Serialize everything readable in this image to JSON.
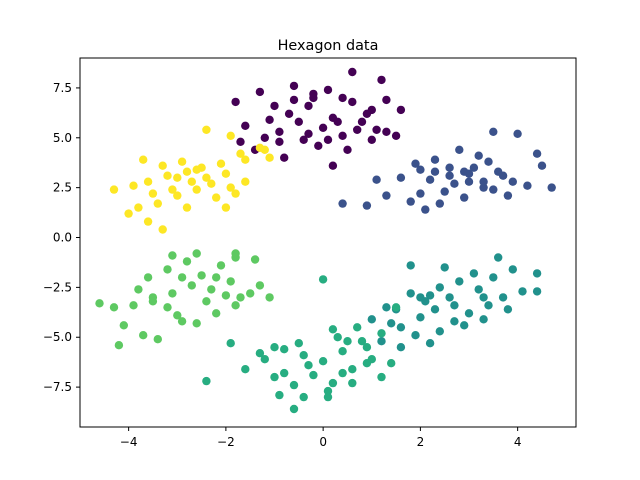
{
  "chart_data": {
    "type": "scatter",
    "title": "Hexagon data",
    "xlabel": "",
    "ylabel": "",
    "xlim": [
      -5.0,
      5.2
    ],
    "ylim": [
      -9.5,
      9.0
    ],
    "xticks": [
      -4,
      -2,
      0,
      2,
      4
    ],
    "xtick_labels": [
      "−4",
      "−2",
      "0",
      "2",
      "4"
    ],
    "yticks": [
      -7.5,
      -5.0,
      -2.5,
      0.0,
      2.5,
      5.0,
      7.5
    ],
    "ytick_labels": [
      "−7.5",
      "−5.0",
      "−2.5",
      "0.0",
      "2.5",
      "5.0",
      "7.5"
    ],
    "grid": false,
    "legend": "none",
    "series": [
      {
        "color": "#440154",
        "points": [
          [
            -1.8,
            6.8
          ],
          [
            -1.3,
            7.3
          ],
          [
            -0.6,
            7.6
          ],
          [
            -0.2,
            7.2
          ],
          [
            0.1,
            7.4
          ],
          [
            0.6,
            8.3
          ],
          [
            1.2,
            7.9
          ],
          [
            1.6,
            6.4
          ],
          [
            -1.6,
            5.6
          ],
          [
            -1.2,
            5.0
          ],
          [
            -0.9,
            5.3
          ],
          [
            -0.4,
            4.9
          ],
          [
            0.0,
            5.5
          ],
          [
            0.4,
            5.1
          ],
          [
            0.8,
            5.8
          ],
          [
            1.1,
            5.4
          ],
          [
            -0.7,
            6.2
          ],
          [
            -0.3,
            6.6
          ],
          [
            0.2,
            6.0
          ],
          [
            0.6,
            6.8
          ],
          [
            1.0,
            6.4
          ],
          [
            -1.0,
            6.6
          ],
          [
            -0.5,
            5.8
          ],
          [
            0.3,
            5.8
          ],
          [
            1.3,
            6.9
          ],
          [
            -0.1,
            4.6
          ],
          [
            0.5,
            4.4
          ],
          [
            -1.4,
            4.4
          ],
          [
            -0.8,
            4.0
          ],
          [
            0.2,
            3.6
          ],
          [
            1.0,
            4.9
          ],
          [
            1.3,
            5.3
          ],
          [
            -0.2,
            7.0
          ],
          [
            0.4,
            7.0
          ],
          [
            0.9,
            6.2
          ],
          [
            -0.6,
            6.9
          ],
          [
            -1.1,
            5.9
          ],
          [
            -0.3,
            5.2
          ],
          [
            0.7,
            5.4
          ],
          [
            0.1,
            4.9
          ],
          [
            1.5,
            5.1
          ],
          [
            -1.7,
            4.8
          ],
          [
            -0.9,
            4.8
          ]
        ]
      },
      {
        "color": "#3b528b",
        "points": [
          [
            1.6,
            3.0
          ],
          [
            1.9,
            3.7
          ],
          [
            2.3,
            3.9
          ],
          [
            2.6,
            3.5
          ],
          [
            3.0,
            3.2
          ],
          [
            3.4,
            3.8
          ],
          [
            3.9,
            2.8
          ],
          [
            4.2,
            2.6
          ],
          [
            4.5,
            3.6
          ],
          [
            2.0,
            2.2
          ],
          [
            2.4,
            1.7
          ],
          [
            2.9,
            2.0
          ],
          [
            3.3,
            2.5
          ],
          [
            3.7,
            3.1
          ],
          [
            2.2,
            2.9
          ],
          [
            2.7,
            2.7
          ],
          [
            3.1,
            3.5
          ],
          [
            3.5,
            2.4
          ],
          [
            1.8,
            1.8
          ],
          [
            2.1,
            1.4
          ],
          [
            2.5,
            2.3
          ],
          [
            3.0,
            2.8
          ],
          [
            3.8,
            2.1
          ],
          [
            4.0,
            5.2
          ],
          [
            4.7,
            2.5
          ],
          [
            3.5,
            5.3
          ],
          [
            1.1,
            2.9
          ],
          [
            0.4,
            1.7
          ],
          [
            0.9,
            1.6
          ],
          [
            1.3,
            2.1
          ],
          [
            2.8,
            4.4
          ],
          [
            3.2,
            4.1
          ],
          [
            4.4,
            4.2
          ],
          [
            2.6,
            3.1
          ],
          [
            2.3,
            3.3
          ],
          [
            3.6,
            3.3
          ],
          [
            2.0,
            3.4
          ],
          [
            2.9,
            3.3
          ],
          [
            3.3,
            2.8
          ]
        ]
      },
      {
        "color": "#21918c",
        "points": [
          [
            1.8,
            -2.8
          ],
          [
            2.1,
            -3.2
          ],
          [
            2.4,
            -2.5
          ],
          [
            2.8,
            -2.2
          ],
          [
            3.2,
            -2.6
          ],
          [
            3.5,
            -2.0
          ],
          [
            3.9,
            -1.6
          ],
          [
            4.4,
            -1.8
          ],
          [
            2.0,
            -4.0
          ],
          [
            2.3,
            -3.6
          ],
          [
            2.7,
            -4.2
          ],
          [
            3.0,
            -3.8
          ],
          [
            3.4,
            -3.4
          ],
          [
            3.7,
            -3.0
          ],
          [
            4.1,
            -2.7
          ],
          [
            1.6,
            -4.5
          ],
          [
            1.9,
            -4.9
          ],
          [
            2.4,
            -4.7
          ],
          [
            2.9,
            -4.4
          ],
          [
            3.3,
            -4.1
          ],
          [
            1.2,
            -5.2
          ],
          [
            1.6,
            -5.5
          ],
          [
            2.2,
            -5.3
          ],
          [
            3.6,
            -1.0
          ],
          [
            4.4,
            -2.7
          ],
          [
            3.1,
            -1.8
          ],
          [
            2.6,
            -3.0
          ],
          [
            2.2,
            -2.9
          ],
          [
            1.5,
            -3.6
          ],
          [
            1.0,
            -4.1
          ],
          [
            1.3,
            -3.5
          ],
          [
            3.8,
            -3.6
          ],
          [
            2.5,
            -1.5
          ],
          [
            1.8,
            -1.4
          ],
          [
            3.3,
            -3.0
          ],
          [
            2.7,
            -3.4
          ],
          [
            1.4,
            -4.3
          ],
          [
            2.0,
            -3.0
          ]
        ]
      },
      {
        "color": "#27ad81",
        "points": [
          [
            -1.6,
            -6.6
          ],
          [
            -1.2,
            -6.1
          ],
          [
            -0.8,
            -5.6
          ],
          [
            -0.4,
            -5.9
          ],
          [
            0.0,
            -6.2
          ],
          [
            0.4,
            -5.7
          ],
          [
            0.8,
            -5.2
          ],
          [
            1.2,
            -4.8
          ],
          [
            -1.0,
            -7.0
          ],
          [
            -0.6,
            -7.4
          ],
          [
            -0.2,
            -6.9
          ],
          [
            0.2,
            -7.3
          ],
          [
            0.6,
            -6.6
          ],
          [
            1.0,
            -6.1
          ],
          [
            -0.9,
            -7.9
          ],
          [
            -0.4,
            -8.0
          ],
          [
            0.1,
            -7.7
          ],
          [
            0.6,
            -7.3
          ],
          [
            -1.9,
            -5.3
          ],
          [
            -2.4,
            -7.2
          ],
          [
            -0.6,
            -8.6
          ],
          [
            0.1,
            -8.0
          ],
          [
            0.9,
            -5.5
          ],
          [
            1.4,
            -6.3
          ],
          [
            0.3,
            -5.0
          ],
          [
            -0.5,
            -5.3
          ],
          [
            0.7,
            -4.5
          ],
          [
            1.2,
            -7.0
          ],
          [
            0.0,
            -2.1
          ],
          [
            0.5,
            -5.2
          ],
          [
            -0.3,
            -6.4
          ],
          [
            -1.3,
            -5.8
          ],
          [
            0.2,
            -4.6
          ],
          [
            -0.8,
            -6.8
          ],
          [
            0.9,
            -6.3
          ],
          [
            1.5,
            -3.5
          ],
          [
            0.4,
            -6.8
          ],
          [
            -1.0,
            -5.5
          ]
        ]
      },
      {
        "color": "#5ec962",
        "points": [
          [
            -4.6,
            -3.3
          ],
          [
            -4.3,
            -3.5
          ],
          [
            -3.9,
            -3.4
          ],
          [
            -3.5,
            -3.2
          ],
          [
            -3.1,
            -2.8
          ],
          [
            -2.7,
            -2.4
          ],
          [
            -2.3,
            -2.6
          ],
          [
            -1.9,
            -2.2
          ],
          [
            -1.5,
            -2.8
          ],
          [
            -1.1,
            -3.0
          ],
          [
            -3.6,
            -2.0
          ],
          [
            -3.2,
            -1.6
          ],
          [
            -2.8,
            -1.2
          ],
          [
            -2.5,
            -1.9
          ],
          [
            -2.1,
            -1.4
          ],
          [
            -1.8,
            -1.0
          ],
          [
            -3.0,
            -3.9
          ],
          [
            -2.6,
            -4.3
          ],
          [
            -2.2,
            -3.8
          ],
          [
            -1.8,
            -3.4
          ],
          [
            -4.1,
            -4.4
          ],
          [
            -3.7,
            -4.9
          ],
          [
            -4.2,
            -5.4
          ],
          [
            -3.4,
            -5.1
          ],
          [
            -2.9,
            -4.2
          ],
          [
            -3.5,
            -3.0
          ],
          [
            -2.9,
            -2.0
          ],
          [
            -2.2,
            -2.0
          ],
          [
            -1.7,
            -3.0
          ],
          [
            -1.3,
            -2.4
          ],
          [
            -3.1,
            -0.9
          ],
          [
            -2.6,
            -0.8
          ],
          [
            -1.8,
            -0.8
          ],
          [
            -3.8,
            -2.6
          ],
          [
            -2.4,
            -3.2
          ],
          [
            -3.2,
            -3.5
          ],
          [
            -1.4,
            -1.1
          ],
          [
            -2.0,
            -2.9
          ]
        ]
      },
      {
        "color": "#fde725",
        "points": [
          [
            -4.3,
            2.4
          ],
          [
            -3.9,
            2.6
          ],
          [
            -3.6,
            2.8
          ],
          [
            -3.2,
            3.1
          ],
          [
            -2.8,
            3.3
          ],
          [
            -2.4,
            3.0
          ],
          [
            -2.0,
            3.2
          ],
          [
            -1.6,
            3.9
          ],
          [
            -1.2,
            4.4
          ],
          [
            -3.7,
            3.9
          ],
          [
            -3.3,
            3.6
          ],
          [
            -2.9,
            3.8
          ],
          [
            -2.5,
            3.5
          ],
          [
            -2.1,
            3.7
          ],
          [
            -1.7,
            4.2
          ],
          [
            -1.3,
            4.5
          ],
          [
            -3.8,
            1.5
          ],
          [
            -3.4,
            1.7
          ],
          [
            -3.0,
            2.1
          ],
          [
            -2.6,
            2.4
          ],
          [
            -2.2,
            2.0
          ],
          [
            -1.8,
            2.2
          ],
          [
            -3.6,
            0.8
          ],
          [
            -3.3,
            0.4
          ],
          [
            -4.0,
            1.2
          ],
          [
            -2.4,
            5.4
          ],
          [
            -1.9,
            5.1
          ],
          [
            -1.1,
            4.0
          ],
          [
            -2.7,
            2.8
          ],
          [
            -3.1,
            2.4
          ],
          [
            -2.3,
            2.7
          ],
          [
            -2.0,
            1.5
          ],
          [
            -3.5,
            2.2
          ],
          [
            -2.8,
            1.5
          ],
          [
            -1.6,
            2.8
          ],
          [
            -3.0,
            3.0
          ],
          [
            -2.6,
            3.4
          ],
          [
            -1.9,
            2.5
          ]
        ]
      }
    ]
  }
}
